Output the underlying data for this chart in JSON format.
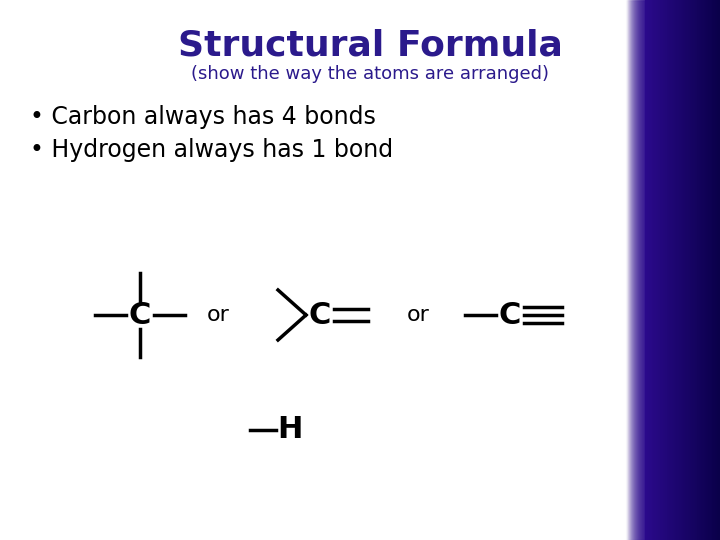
{
  "title": "Structural Formula",
  "subtitle": "(show the way the atoms are arranged)",
  "title_color": "#2B1A8C",
  "bullet1": "Carbon always has 4 bonds",
  "bullet2": "Hydrogen always has 1 bond",
  "bg_color": "#FFFFFF",
  "right_bar_dark": "#12004A",
  "right_bar_mid": "#2B0A8C",
  "text_color": "#000000",
  "title_fontsize": 26,
  "subtitle_fontsize": 13,
  "bullet_fontsize": 17,
  "formula_fontsize": 22,
  "or_fontsize": 16
}
